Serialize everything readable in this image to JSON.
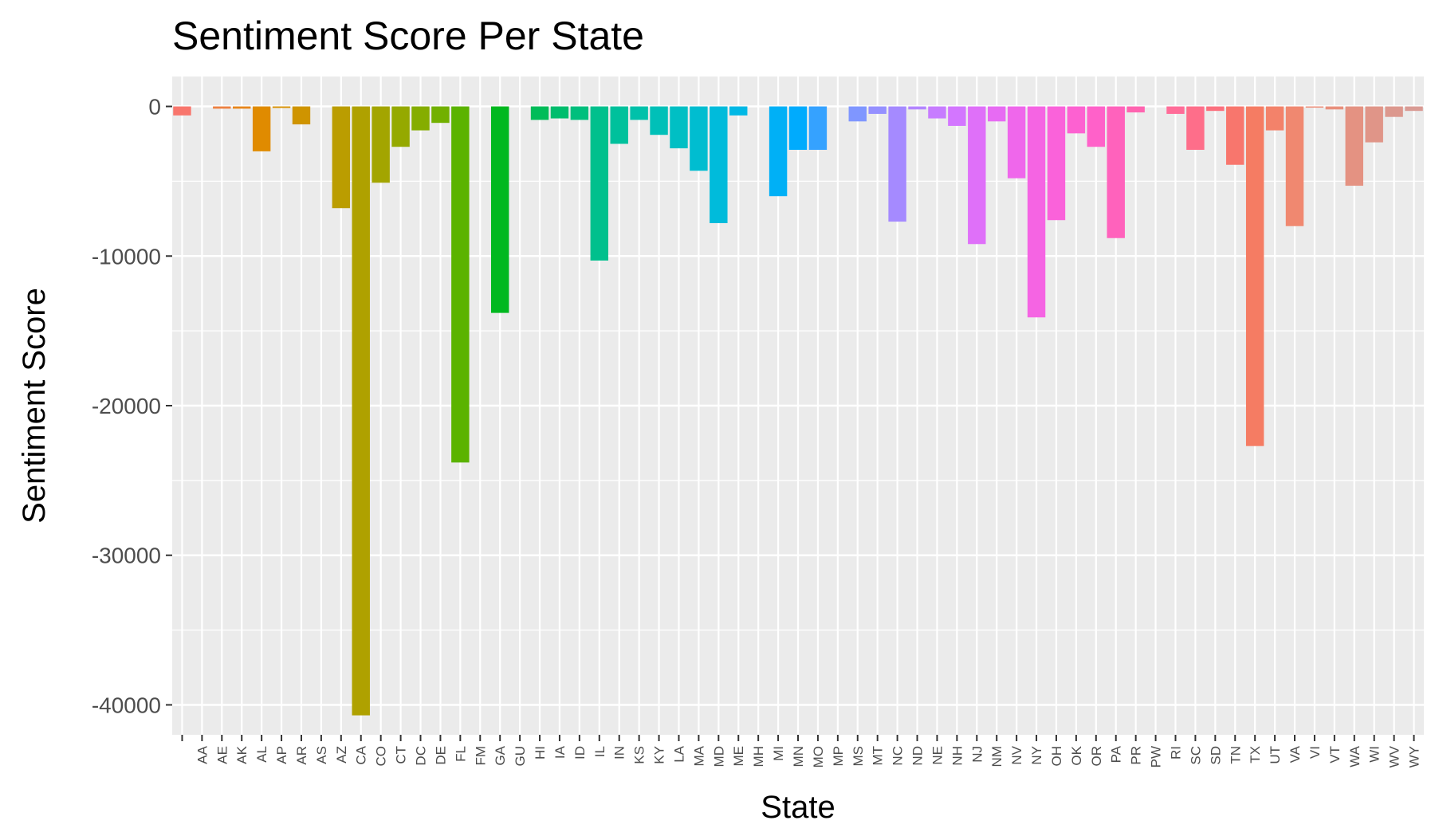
{
  "chart_data": {
    "type": "bar",
    "title": "Sentiment Score Per State",
    "xlabel": "State",
    "ylabel": "Sentiment Score",
    "ylim": [
      -42000,
      2000
    ],
    "yticks": [
      0,
      -10000,
      -20000,
      -30000,
      -40000
    ],
    "ytick_labels": [
      "0",
      "-10000",
      "-20000",
      "-30000",
      "-40000"
    ],
    "grid": true,
    "legend": "none",
    "categories": [
      "",
      "AA",
      "AE",
      "AK",
      "AL",
      "AP",
      "AR",
      "AS",
      "AZ",
      "CA",
      "CO",
      "CT",
      "DC",
      "DE",
      "FL",
      "FM",
      "GA",
      "GU",
      "HI",
      "IA",
      "ID",
      "IL",
      "IN",
      "KS",
      "KY",
      "LA",
      "MA",
      "MD",
      "ME",
      "MH",
      "MI",
      "MN",
      "MO",
      "MP",
      "MS",
      "MT",
      "NC",
      "ND",
      "NE",
      "NH",
      "NJ",
      "NM",
      "NV",
      "NY",
      "OH",
      "OK",
      "OR",
      "PA",
      "PR",
      "PW",
      "RI",
      "SC",
      "SD",
      "TN",
      "TX",
      "UT",
      "VA",
      "VI",
      "VT",
      "WA",
      "WI",
      "WV",
      "WY"
    ],
    "values": [
      -600,
      0,
      -150,
      -150,
      -3000,
      -100,
      -1200,
      0,
      -6800,
      -40700,
      -5100,
      -2700,
      -1600,
      -1100,
      -23800,
      0,
      -13800,
      0,
      -900,
      -800,
      -900,
      -10300,
      -2500,
      -900,
      -1900,
      -2800,
      -4300,
      -7800,
      -600,
      0,
      -6000,
      -2900,
      -2900,
      0,
      -1000,
      -500,
      -7700,
      -200,
      -800,
      -1300,
      -9200,
      -1000,
      -4800,
      -14100,
      -7600,
      -1800,
      -2700,
      -8800,
      -400,
      0,
      -500,
      -2900,
      -300,
      -3900,
      -22700,
      -1600,
      -8000,
      -50,
      -200,
      -5300,
      -2400,
      -700,
      -300
    ],
    "colors": [
      "#F8766D",
      "#F37B59",
      "#ED8141",
      "#E7861B",
      "#E08B00",
      "#D89000",
      "#CF9400",
      "#C59900",
      "#BB9D00",
      "#AFA100",
      "#A3A500",
      "#95A900",
      "#85AD00",
      "#72B000",
      "#5BB300",
      "#39B600",
      "#00B81F",
      "#00BA42",
      "#00BC59",
      "#00BD6D",
      "#00BF7D",
      "#00C08D",
      "#00C19C",
      "#00C1AA",
      "#00C0B8",
      "#00BFC4",
      "#00BDD0",
      "#00BBDB",
      "#00B8E5",
      "#00B4EF",
      "#00B0F6",
      "#00ABFD",
      "#35A2FF",
      "#619CFF",
      "#7F96FF",
      "#9590FF",
      "#A58AFF",
      "#B385FF",
      "#C77CFF",
      "#D376FF",
      "#DF70F9",
      "#E76BF3",
      "#EF67EB",
      "#F564E3",
      "#FA62DA",
      "#FD61D1",
      "#FF61C9",
      "#FF62BC",
      "#FF64B0",
      "#FF67A4",
      "#FF6C98",
      "#FE6E8A",
      "#FB707E",
      "#F8766D",
      "#F57C63",
      "#F3826A",
      "#F08870",
      "#EC8C76",
      "#E88F7C",
      "#E49282",
      "#E09588",
      "#DC988E",
      "#D99B94"
    ]
  }
}
